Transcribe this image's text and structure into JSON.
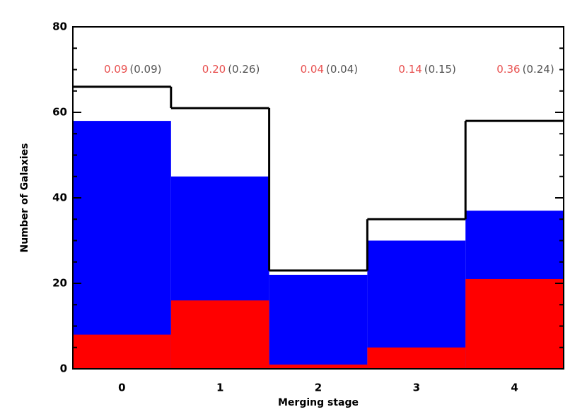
{
  "chart_data": {
    "type": "histogram-overlay",
    "xlabel": "Merging stage",
    "ylabel": "Number of Galaxies",
    "categories": [
      "0",
      "1",
      "2",
      "3",
      "4"
    ],
    "series": [
      {
        "color": "#000000",
        "fill": false,
        "values": [
          66,
          61,
          23,
          35,
          58
        ]
      },
      {
        "color": "#0000ff",
        "fill": true,
        "values": [
          58,
          45,
          22,
          30,
          37
        ]
      },
      {
        "color": "#ff0000",
        "fill": true,
        "values": [
          8,
          16,
          1,
          5,
          21
        ]
      }
    ],
    "annotations": {
      "y": 70,
      "primary": {
        "color": "#e8504f",
        "texts": [
          "0.09",
          "0.20",
          "0.04",
          "0.14",
          "0.36"
        ]
      },
      "secondary": {
        "color": "#555555",
        "texts": [
          "(0.09)",
          "(0.26)",
          "(0.04)",
          "(0.15)",
          "(0.24)"
        ]
      }
    },
    "ylim": [
      0,
      80
    ],
    "yticks": [
      0,
      20,
      40,
      60,
      80
    ],
    "yminorticks": [
      5,
      10,
      15,
      25,
      30,
      35,
      45,
      50,
      55,
      65,
      70,
      75
    ]
  }
}
